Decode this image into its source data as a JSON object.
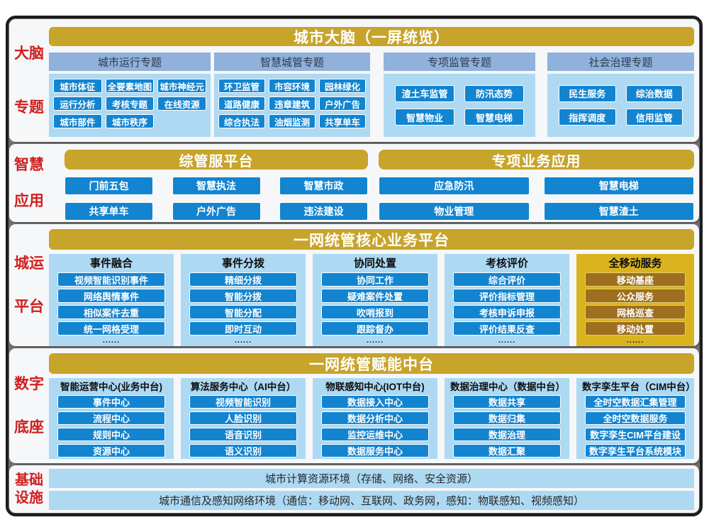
{
  "colors": {
    "gold": "#c7a42a",
    "mobile_panel_gold": "#d9b41f",
    "mobile_item_brown": "#9d6f1f",
    "button_blue": "#1384d0",
    "panel_light_blue": "#add9f3",
    "group_header_blue": "#8fb1dc",
    "label_red": "#d01f1f"
  },
  "brain": {
    "label": [
      "大脑",
      "专题"
    ],
    "title": "城市大脑（一屏统览）",
    "groups": [
      {
        "header": "城市运行专题",
        "items": [
          "城市体征",
          "全要素地图",
          "城市神经元",
          "运行分析",
          "考核专题",
          "在线资源",
          "城市部件",
          "城市秩序"
        ]
      },
      {
        "header": "智慧城管专题",
        "items": [
          "环卫监管",
          "市容环境",
          "园林绿化",
          "道路健康",
          "违章建筑",
          "户外广告",
          "综合执法",
          "油烟监测",
          "共享单车"
        ]
      },
      {
        "header": "专项监管专题",
        "items": [
          "渣土车监管",
          "防汛态势",
          "智慧物业",
          "智慧电梯"
        ]
      },
      {
        "header": "社会治理专题",
        "items": [
          "民生服务",
          "综治数据",
          "指挥调度",
          "信用监管"
        ]
      }
    ]
  },
  "apps": {
    "label": [
      "智慧",
      "应用"
    ],
    "groups": [
      {
        "header": "综管服平台",
        "items": [
          "门前五包",
          "智慧执法",
          "智慧市政",
          "共享单车",
          "户外广告",
          "违法建设"
        ]
      },
      {
        "header": "专项业务应用",
        "items": [
          "应急防汛",
          "智慧电梯",
          "物业管理",
          "智慧渣土"
        ]
      }
    ]
  },
  "ops": {
    "label": [
      "城运",
      "平台"
    ],
    "title": "一网统管核心业务平台",
    "more": "......",
    "columns": [
      {
        "header": "事件融合",
        "items": [
          "视频智能识别事件",
          "网络舆情事件",
          "相似案件去重",
          "统一网格受理"
        ]
      },
      {
        "header": "事件分拨",
        "items": [
          "精细分拨",
          "智能分拨",
          "智能分配",
          "即时互动"
        ]
      },
      {
        "header": "协同处置",
        "items": [
          "协同工作",
          "疑难案件处置",
          "吹哨报到",
          "跟踪督办"
        ]
      },
      {
        "header": "考核评价",
        "items": [
          "综合评价",
          "评价指标管理",
          "考核申诉申报",
          "评价结果反查"
        ]
      },
      {
        "header": "全移动服务",
        "items": [
          "移动基座",
          "公众服务",
          "网格巡查",
          "移动处置"
        ]
      }
    ]
  },
  "base": {
    "label": [
      "数字",
      "底座"
    ],
    "title": "一网统管赋能中台",
    "columns": [
      {
        "header": "智能运营中心(业务中台)",
        "items": [
          "事件中心",
          "流程中心",
          "规则中心",
          "资源中心"
        ]
      },
      {
        "header": "算法服务中心（AI中台）",
        "items": [
          "视频智能识别",
          "人脸识别",
          "语音识别",
          "语义识别"
        ]
      },
      {
        "header": "物联感知中心(IOT中台)",
        "items": [
          "数据接入中心",
          "数据分析中心",
          "监控运维中心",
          "数据服务中心"
        ]
      },
      {
        "header": "数据治理中心（数据中台）",
        "items": [
          "数据共享",
          "数据归集",
          "数据治理",
          "数据汇聚"
        ]
      },
      {
        "header": "数字孪生平台（CIM中台）",
        "items": [
          "全时空数据汇集管理",
          "全时空数据服务",
          "数字孪生CIM平台建设",
          "数字孪生平台系统模块"
        ]
      }
    ]
  },
  "infra": {
    "label": [
      "基础",
      "设施"
    ],
    "rows": [
      "城市计算资源环境（存储、网络、安全资源）",
      "城市通信及感知网络环境（通信：移动网、互联网、政务网，感知：物联感知、视频感知）"
    ]
  }
}
